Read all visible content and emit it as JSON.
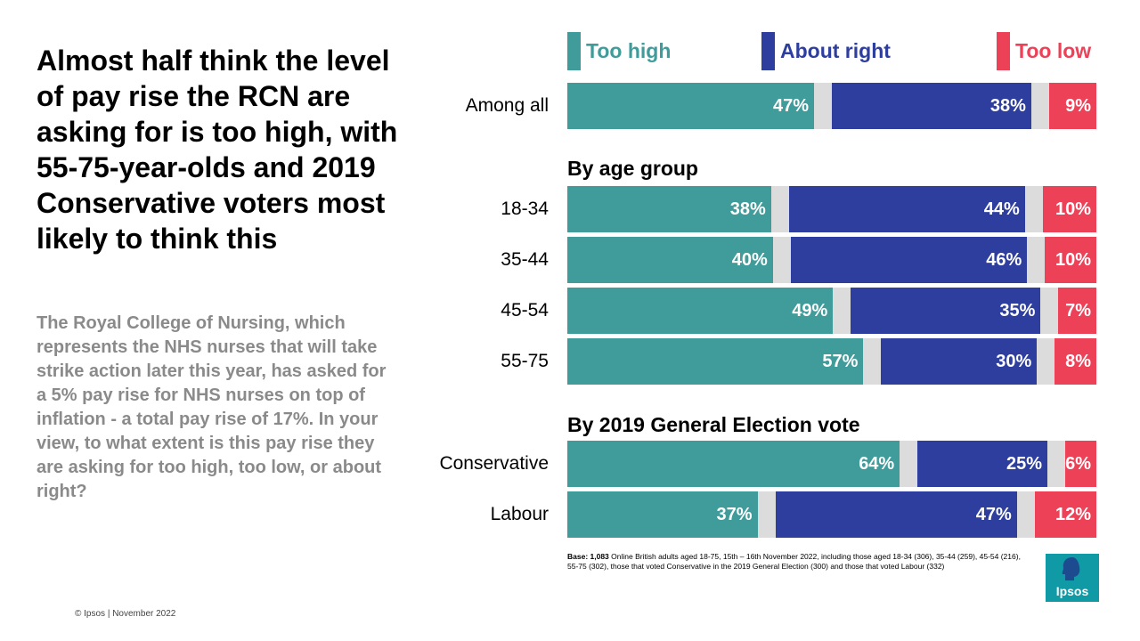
{
  "headline": "Almost half think the level of pay rise the RCN are asking for is too high, with 55-75-year-olds and 2019 Conservative voters most likely to think this",
  "question": "The Royal College of Nursing, which represents the NHS nurses that will take strike action later this year, has asked for a 5% pay rise for NHS nurses on top of inflation - a total pay rise of 17%. In your view, to what extent is this pay rise they are asking for too high, too low, or about right?",
  "legend": [
    {
      "label": "Too high",
      "color": "#3f9c9b"
    },
    {
      "label": "About right",
      "color": "#2e3e9e"
    },
    {
      "label": "Too low",
      "color": "#ed4158"
    }
  ],
  "sections": {
    "age": "By age group",
    "vote": "By 2019 General Election vote"
  },
  "footnote": {
    "base_label": "Base: 1,083",
    "text": " Online British adults aged 18-75, 15th – 16th November 2022, including those aged 18-34 (306), 35-44 (259), 45-54 (216), 55-75 (302), those that voted Conservative in the 2019 General Election (300) and those that voted Labour (332)"
  },
  "copyright": "© Ipsos | November 2022",
  "logo": {
    "text": "Ipsos",
    "icon": "ipsos-head-icon"
  },
  "colors": {
    "too_high": "#3f9c9b",
    "about_right": "#2e3e9e",
    "too_low": "#ed4158",
    "gap": "#dcdcdc"
  },
  "chart_data": {
    "type": "bar",
    "orientation": "horizontal-stacked",
    "categories": [
      "Among all",
      "18-34",
      "35-44",
      "45-54",
      "55-75",
      "Conservative",
      "Labour"
    ],
    "series": [
      {
        "name": "Too high",
        "values": [
          47,
          38,
          40,
          49,
          57,
          64,
          37
        ]
      },
      {
        "name": "About right",
        "values": [
          38,
          44,
          46,
          35,
          30,
          25,
          47
        ]
      },
      {
        "name": "Too low",
        "values": [
          9,
          10,
          10,
          7,
          8,
          6,
          12
        ]
      }
    ],
    "value_labels": {
      "Too high": [
        "47%",
        "38%",
        "40%",
        "49%",
        "57%",
        "64%",
        "37%"
      ],
      "About right": [
        "38%",
        "44%",
        "46%",
        "35%",
        "30%",
        "25%",
        "47%"
      ],
      "Too low": [
        "9%",
        "10%",
        "10%",
        "7%",
        "8%",
        "6%",
        "12%"
      ]
    },
    "title": "",
    "xlim": [
      0,
      100
    ],
    "legend_position": "top"
  }
}
